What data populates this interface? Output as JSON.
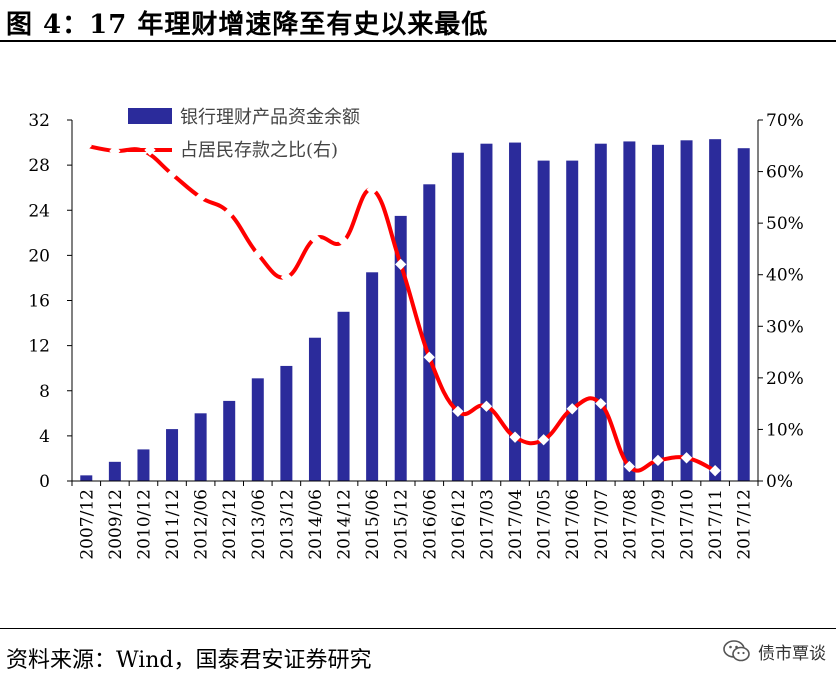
{
  "header": {
    "title": "图 4：17 年理财增速降至有史以来最低"
  },
  "footer": {
    "source": "资料来源：Wind，国泰君安证券研究",
    "watermark": "债市覃谈"
  },
  "chart_data": {
    "type": "bar",
    "categories": [
      "2007/12",
      "2009/12",
      "2010/12",
      "2011/12",
      "2012/06",
      "2012/12",
      "2013/06",
      "2013/12",
      "2014/06",
      "2014/12",
      "2015/06",
      "2015/12",
      "2016/06",
      "2016/12",
      "2017/03",
      "2017/04",
      "2017/05",
      "2017/06",
      "2017/07",
      "2017/08",
      "2017/09",
      "2017/10",
      "2017/11",
      "2017/12"
    ],
    "series": [
      {
        "name": "银行理财产品资金余额",
        "type": "bar",
        "axis": "left",
        "color": "#2B2B9B",
        "values": [
          0.5,
          1.7,
          2.8,
          4.6,
          6.0,
          7.1,
          9.1,
          10.2,
          12.7,
          15.0,
          18.5,
          23.5,
          26.3,
          29.1,
          29.9,
          30.0,
          28.4,
          28.4,
          29.9,
          30.1,
          29.8,
          30.2,
          30.3,
          29.5
        ]
      },
      {
        "name": "占居民存款之比(右)",
        "type": "line",
        "axis": "right",
        "color": "#FF0000",
        "values": [
          65.0,
          64.0,
          64.0,
          59.5,
          55.0,
          52.0,
          44.0,
          39.5,
          47.0,
          46.5,
          56.5,
          42.0,
          24.0,
          13.5,
          14.5,
          8.5,
          8.0,
          14.0,
          15.0,
          2.8,
          4.0,
          4.5,
          2.0,
          null
        ]
      }
    ],
    "ylim_left": [
      0,
      32
    ],
    "yticks_left": [
      "0",
      "4",
      "8",
      "12",
      "16",
      "20",
      "24",
      "28",
      "32"
    ],
    "ylim_right": [
      0,
      70
    ],
    "yticks_right": [
      "0%",
      "10%",
      "20%",
      "30%",
      "40%",
      "50%",
      "60%",
      "70%"
    ],
    "legend_placement": "top-left",
    "grid": false
  }
}
